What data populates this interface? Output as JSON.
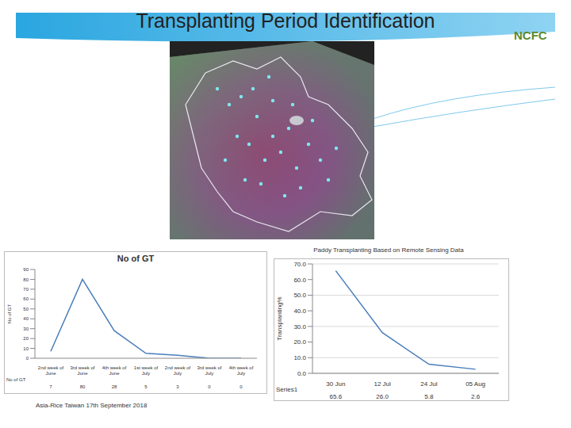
{
  "slide": {
    "title": "Transplanting Period Identification",
    "logo": "NCFC",
    "footer": "Asia-Rice Taiwan 17th September 2018"
  },
  "chart_data": [
    {
      "type": "line",
      "title": "No of GT",
      "y_label": "No of GT",
      "categories": [
        "2nd week of June",
        "3rd week of June",
        "4th week of June",
        "1st week of July",
        "2nd week of July",
        "3rd week of July",
        "4th week of July"
      ],
      "series": [
        {
          "name": "No of GT",
          "color": "#4a7ebb",
          "values": [
            7,
            80,
            28,
            5,
            3,
            0,
            0
          ]
        }
      ],
      "ylim": [
        0,
        90
      ],
      "yticks": [
        0,
        10,
        20,
        30,
        40,
        50,
        60,
        70,
        80,
        90
      ],
      "grid": false,
      "marker": "none"
    },
    {
      "type": "line",
      "title": "Paddy Transplanting Based on Remote Sensing Data",
      "y_label": "Transplanting%",
      "categories": [
        "30 Jun",
        "12 Jul",
        "24 Jul",
        "05 Aug"
      ],
      "series": [
        {
          "name": "Series1",
          "color": "#4a7ebb",
          "values": [
            65.6,
            26.0,
            5.8,
            2.6
          ],
          "value_labels": [
            "65.6",
            "26.0",
            "5.8",
            "2.6"
          ]
        }
      ],
      "ylim": [
        0,
        70
      ],
      "yticks": [
        {
          "value": 0,
          "label": "0.0"
        },
        {
          "value": 10,
          "label": "10.0"
        },
        {
          "value": 20,
          "label": "20.0"
        },
        {
          "value": 30,
          "label": "30.0"
        },
        {
          "value": 40,
          "label": "40.0"
        },
        {
          "value": 50,
          "label": "50.0"
        },
        {
          "value": 60,
          "label": "60.0"
        },
        {
          "value": 70,
          "label": "70.0"
        }
      ],
      "grid": true,
      "marker": "none"
    }
  ]
}
